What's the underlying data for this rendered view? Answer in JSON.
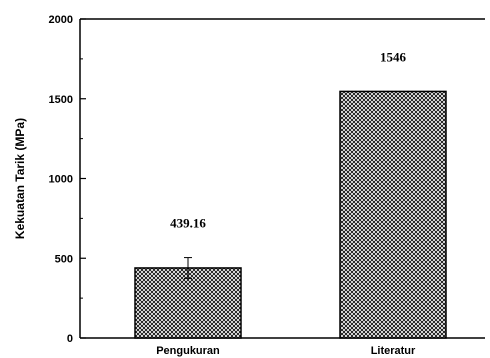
{
  "chart_data": {
    "type": "bar",
    "categories": [
      "Pengukuran",
      "Literatur"
    ],
    "values": [
      439.16,
      1546
    ],
    "value_labels": [
      "439.16",
      "1546"
    ],
    "error": [
      65,
      null
    ],
    "ylabel": "Kekuatan Tarik (MPa)",
    "ylim": [
      0,
      2000
    ],
    "yticks": [
      0,
      500,
      1000,
      1500,
      2000
    ],
    "grid": false,
    "bar_fill": "crosshatch",
    "colors": {
      "bar_stroke": "#000000",
      "hatch": "#000000",
      "background": "#ffffff"
    }
  }
}
